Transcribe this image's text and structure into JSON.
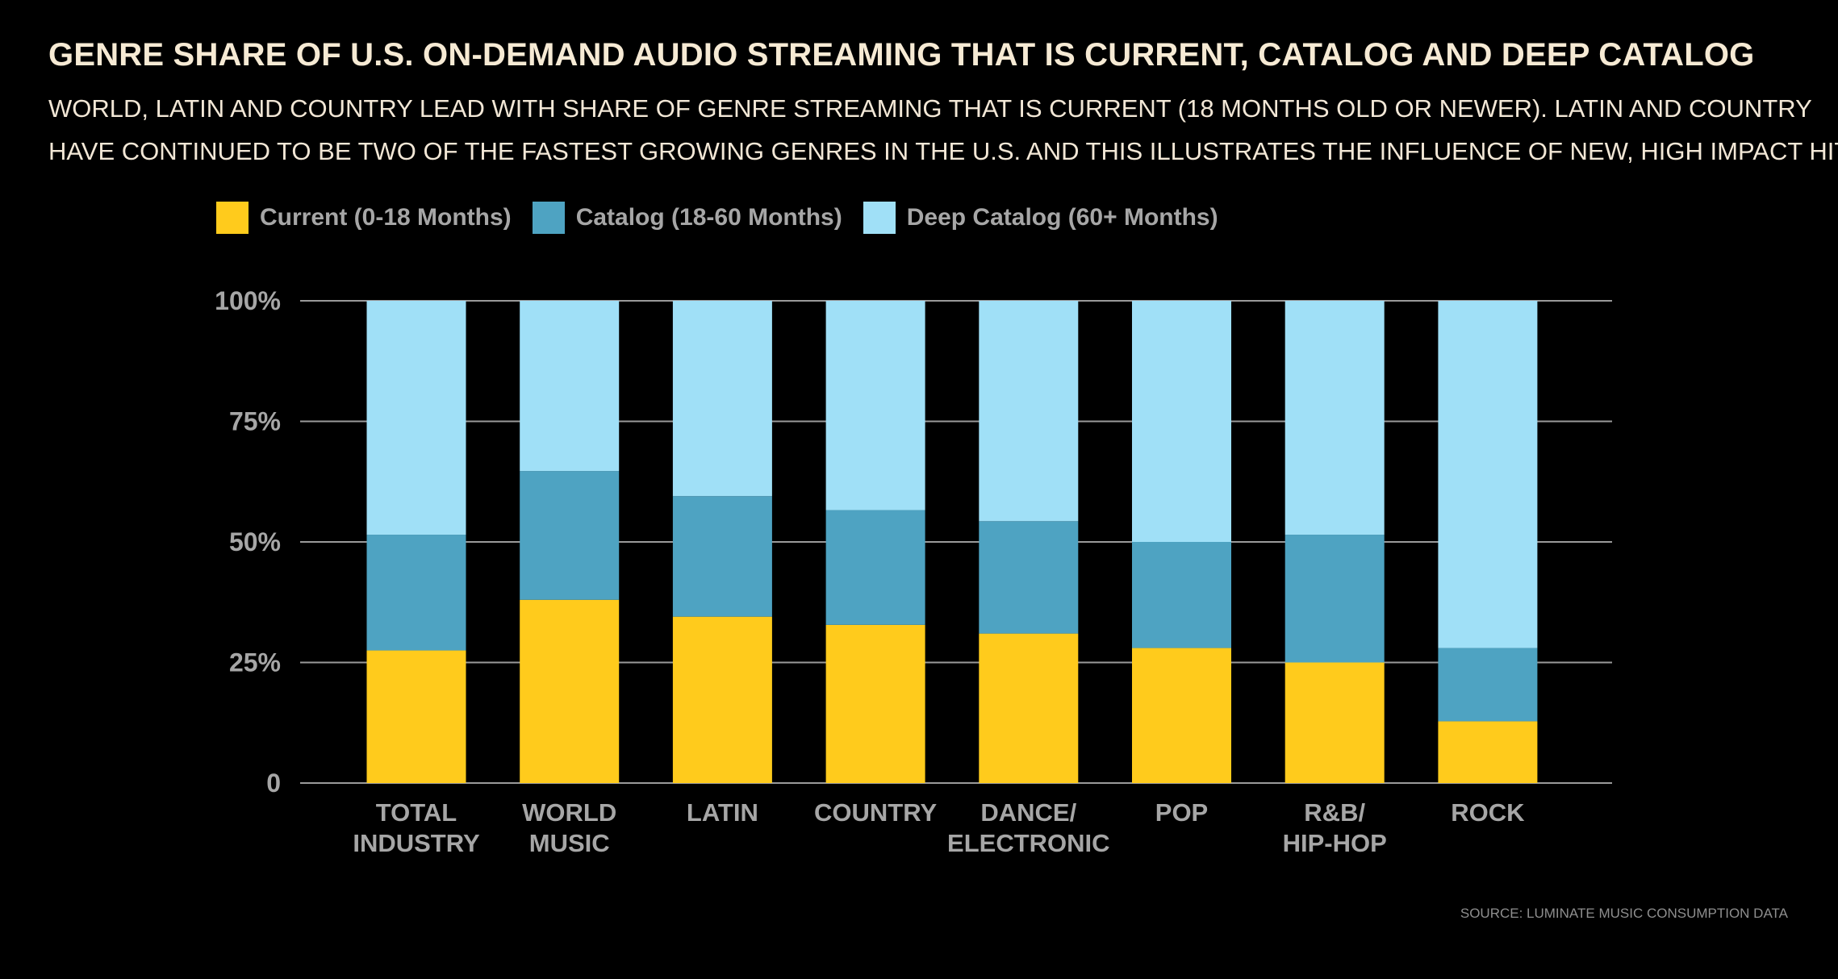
{
  "header": {
    "title": "GENRE SHARE OF U.S. ON-DEMAND AUDIO STREAMING THAT IS CURRENT, CATALOG AND DEEP CATALOG",
    "subtitle_line1": "WORLD, LATIN AND COUNTRY LEAD WITH SHARE OF GENRE STREAMING THAT IS CURRENT (18 MONTHS OLD OR NEWER). LATIN AND COUNTRY",
    "subtitle_line2": "HAVE CONTINUED TO BE TWO OF THE FASTEST GROWING GENRES IN THE U.S. AND THIS ILLUSTRATES THE INFLUENCE OF NEW, HIGH IMPACT HITS"
  },
  "footer": {
    "source": "SOURCE: LUMINATE MUSIC CONSUMPTION DATA"
  },
  "colors": {
    "current": "#ffcb1c",
    "catalog": "#4ea3c2",
    "deep_catalog": "#a0e0f7",
    "grid": "#9a9a9a",
    "axis_text": "#a6a6a6"
  },
  "chart_data": {
    "type": "bar",
    "stacked": true,
    "categories": [
      [
        "TOTAL",
        "INDUSTRY"
      ],
      [
        "WORLD",
        "MUSIC"
      ],
      [
        "LATIN"
      ],
      [
        "COUNTRY"
      ],
      [
        "DANCE/",
        "ELECTRONIC"
      ],
      [
        "POP"
      ],
      [
        "R&B/",
        "HIP-HOP"
      ],
      [
        "ROCK"
      ]
    ],
    "series": [
      {
        "name": "Current (0-18 Months)",
        "color_key": "current",
        "values": [
          27.5,
          38,
          34.5,
          32.8,
          31,
          28,
          25,
          12.8
        ]
      },
      {
        "name": "Catalog (18-60 Months)",
        "color_key": "catalog",
        "values": [
          24,
          26.7,
          25,
          23.8,
          23.3,
          22,
          26.5,
          15.2
        ]
      },
      {
        "name": "Deep Catalog (60+ Months)",
        "color_key": "deep_catalog",
        "values": [
          48.5,
          35.3,
          40.5,
          43.4,
          45.7,
          50,
          48.5,
          72
        ]
      }
    ],
    "y_ticks": [
      {
        "value": 0,
        "label": "0"
      },
      {
        "value": 25,
        "label": "25%"
      },
      {
        "value": 50,
        "label": "50%"
      },
      {
        "value": 75,
        "label": "75%"
      },
      {
        "value": 100,
        "label": "100%"
      }
    ],
    "ylim": [
      0,
      100
    ],
    "grid": true,
    "legend_position": "top-left"
  }
}
